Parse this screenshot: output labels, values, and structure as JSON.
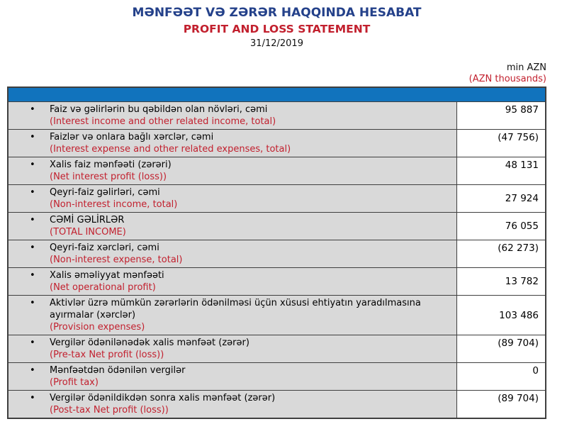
{
  "document": {
    "title_az": "MƏNFƏƏT VƏ ZƏRƏR HAQQINDA HESABAT",
    "title_en": "PROFIT AND LOSS STATEMENT",
    "date": "31/12/2019",
    "unit_note": {
      "az": "min AZN",
      "en": "(AZN thousands)"
    }
  },
  "colors": {
    "title_blue": "#24418A",
    "accent_red": "#C2202E",
    "header_bar_blue": "#1173BD",
    "row_label_gray": "#D9D9D9",
    "table_border": "#3F3F3F"
  },
  "icons": {
    "bullet": "•"
  },
  "table": {
    "rows": [
      {
        "az": "Faiz və gəlirlərin bu qəbildən olan növləri, cəmi",
        "en": "(Interest income and other related income, total)",
        "value": "95 887"
      },
      {
        "az": "Faizlər və onlara bağlı xərclər, cəmi",
        "en": "(Interest expense and other related expenses, total)",
        "value": "(47 756)"
      },
      {
        "az": "Xalis faiz mənfəəti (zərəri)",
        "en": "(Net interest profit (loss))",
        "value": "48 131"
      },
      {
        "az": "Qeyri-faiz gəlirləri, cəmi",
        "en": "(Non-interest income, total)",
        "value": "27 924"
      },
      {
        "az": "CƏMİ GƏLİRLƏR",
        "en": "(TOTAL INCOME)",
        "value": "76 055"
      },
      {
        "az": "Qeyri-faiz xərcləri, cəmi",
        "en": "(Non-interest expense, total)",
        "value": "(62 273)"
      },
      {
        "az": "Xalis əməliyyat mənfəəti",
        "en": "(Net operational profit)",
        "value": "13 782"
      },
      {
        "az": "Aktivlər üzrə mümkün zərərlərin ödənilməsi üçün xüsusi ehtiyatın yaradılmasına ayırmalar (xərclər)",
        "en": "(Provision expenses)",
        "value": "103 486"
      },
      {
        "az": "Vergilər ödənilənədək xalis mənfəət (zərər)",
        "en": "(Pre-tax Net profit (loss))",
        "value": "(89 704)"
      },
      {
        "az": "Mənfəətdən ödənilən vergilər",
        "en": "(Profit tax)",
        "value": "0"
      },
      {
        "az": "Vergilər ödənildikdən sonra xalis mənfəət (zərər)",
        "en": "(Post-tax Net profit (loss))",
        "value": "(89 704)"
      }
    ]
  }
}
